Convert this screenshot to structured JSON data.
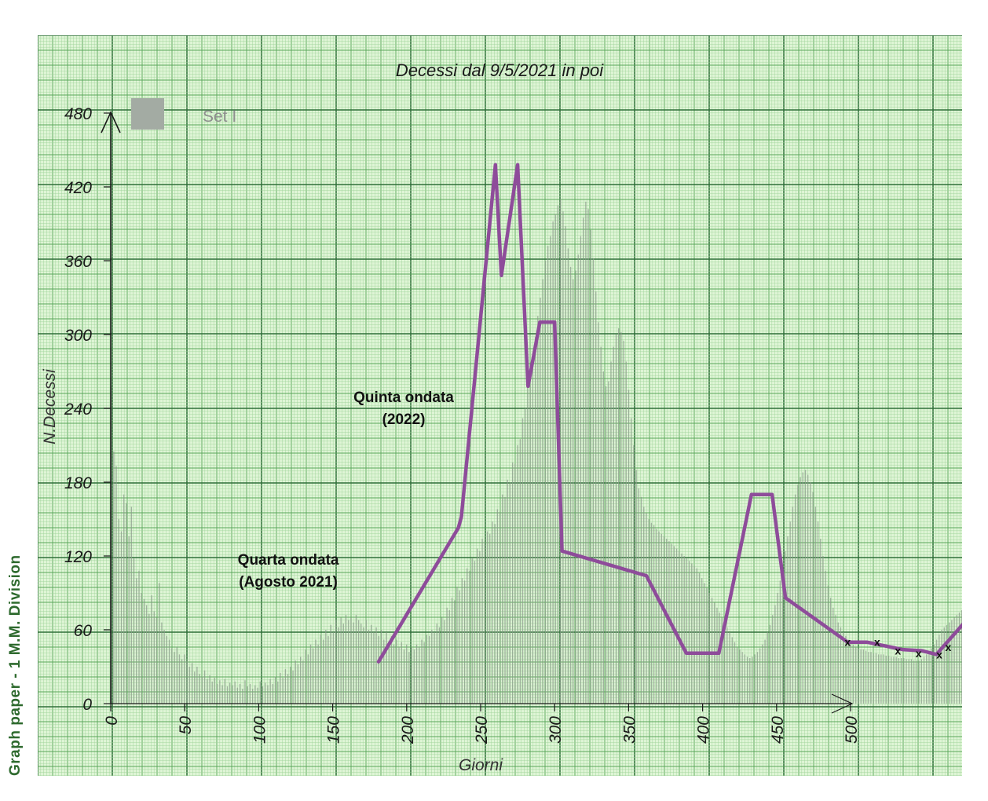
{
  "paper_label": "Graph paper - 1 M.M. Division",
  "colors": {
    "paper": "#dff5d6",
    "grid_fine": "#9fd49a",
    "grid_medium": "#5aa65a",
    "grid_major": "#2f6f38",
    "bars": "#8c9c8c",
    "trend": "#8e4c9a",
    "text": "#1a1a1a",
    "legend_swatch": "#a3aba3"
  },
  "chart_data": {
    "type": "bar",
    "title": "Decessi dal 9/5/2021 in poi",
    "xlabel": "Giorni",
    "ylabel": "N.Decessi",
    "xlim": [
      0,
      580
    ],
    "ylim": [
      0,
      480
    ],
    "xticks": [
      "0",
      "50",
      "100",
      "150",
      "200",
      "250",
      "300",
      "350",
      "400",
      "450",
      "500"
    ],
    "yticks": [
      "0",
      "60",
      "120",
      "180",
      "240",
      "300",
      "360",
      "420",
      "480"
    ],
    "legend": {
      "entries": [
        "Set I"
      ],
      "position": "top-left"
    },
    "grid": true,
    "annotations": [
      {
        "lines": [
          "Quinta ondata",
          "(2022)"
        ],
        "x": 198,
        "y": 240
      },
      {
        "lines": [
          "Quarta ondata",
          "(Agosto 2021)"
        ],
        "x": 120,
        "y": 108
      }
    ],
    "series": [
      {
        "values": [
          258,
          205,
          193,
          150,
          140,
          170,
          163,
          136,
          160,
          118,
          102,
          108,
          90,
          85,
          80,
          73,
          88,
          75,
          70,
          98,
          66,
          60,
          55,
          52,
          45,
          42,
          46,
          40,
          36,
          40,
          35,
          30,
          33,
          26,
          30,
          24,
          22,
          27,
          20,
          23,
          18,
          21,
          16,
          19,
          15,
          20,
          14,
          17,
          15,
          18,
          13,
          16,
          12,
          19,
          14,
          16,
          12,
          15,
          13,
          18,
          14,
          17,
          15,
          20,
          16,
          22,
          18,
          25,
          21,
          28,
          24,
          30,
          27,
          35,
          32,
          38,
          35,
          44,
          40,
          48,
          45,
          52,
          48,
          56,
          52,
          60,
          55,
          64,
          58,
          68,
          62,
          70,
          65,
          72,
          68,
          70,
          66,
          72,
          68,
          65,
          62,
          68,
          60,
          64,
          58,
          62,
          55,
          60,
          52,
          58,
          50,
          55,
          48,
          52,
          46,
          50,
          44,
          48,
          42,
          46,
          44,
          48,
          46,
          52,
          50,
          56,
          55,
          60,
          58,
          65,
          62,
          70,
          68,
          78,
          76,
          86,
          84,
          95,
          92,
          102,
          100,
          110,
          108,
          118,
          116,
          126,
          124,
          134,
          132,
          140,
          138,
          148,
          146,
          158,
          156,
          170,
          168,
          182,
          180,
          196,
          195,
          210,
          215,
          232,
          240,
          258,
          268,
          285,
          298,
          315,
          330,
          345,
          360,
          372,
          380,
          392,
          398,
          405,
          410,
          400,
          388,
          370,
          355,
          345,
          352,
          365,
          380,
          395,
          408,
          402,
          385,
          362,
          335,
          310,
          290,
          270,
          258,
          262,
          278,
          290,
          300,
          305,
          302,
          295,
          278,
          255,
          232,
          210,
          190,
          175,
          168,
          160,
          155,
          150,
          147,
          145,
          142,
          140,
          138,
          136,
          134,
          132,
          130,
          128,
          126,
          124,
          122,
          120,
          118,
          116,
          114,
          112,
          110,
          106,
          102,
          98,
          94,
          90,
          86,
          82,
          78,
          74,
          70,
          66,
          62,
          58,
          54,
          50,
          46,
          44,
          42,
          40,
          38,
          37,
          38,
          40,
          42,
          45,
          48,
          52,
          58,
          64,
          72,
          80,
          90,
          100,
          112,
          124,
          136,
          148,
          160,
          170,
          178,
          184,
          188,
          190,
          186,
          180,
          172,
          160,
          148,
          134,
          120,
          108,
          96,
          86,
          78,
          72,
          66,
          62,
          58,
          55,
          52,
          50,
          48,
          46,
          45,
          44,
          44,
          43,
          42,
          42,
          41,
          41,
          40,
          40,
          40,
          39,
          39,
          38,
          38,
          38,
          37,
          37,
          37,
          36,
          36,
          36,
          35,
          35,
          35,
          36,
          38,
          40,
          42,
          45,
          48,
          52,
          56,
          60,
          62,
          64,
          66,
          68,
          70,
          72,
          74,
          76,
          78,
          80
        ]
      }
    ],
    "trend_line": {
      "x": [
        181,
        235,
        237,
        260,
        264,
        275,
        282,
        290,
        300,
        305,
        362,
        389,
        411,
        433,
        447,
        456,
        498,
        511,
        519,
        535,
        548,
        558,
        580
      ],
      "y": [
        34,
        143,
        152,
        438,
        348,
        438,
        258,
        310,
        310,
        124,
        104,
        41,
        41,
        170,
        170,
        86,
        50,
        50,
        48,
        44,
        43,
        40,
        70
      ]
    },
    "markers": {
      "label": "x",
      "x": [
        498,
        518,
        532,
        546,
        560,
        566
      ],
      "y": [
        50,
        50,
        43,
        41,
        40,
        46
      ]
    }
  }
}
